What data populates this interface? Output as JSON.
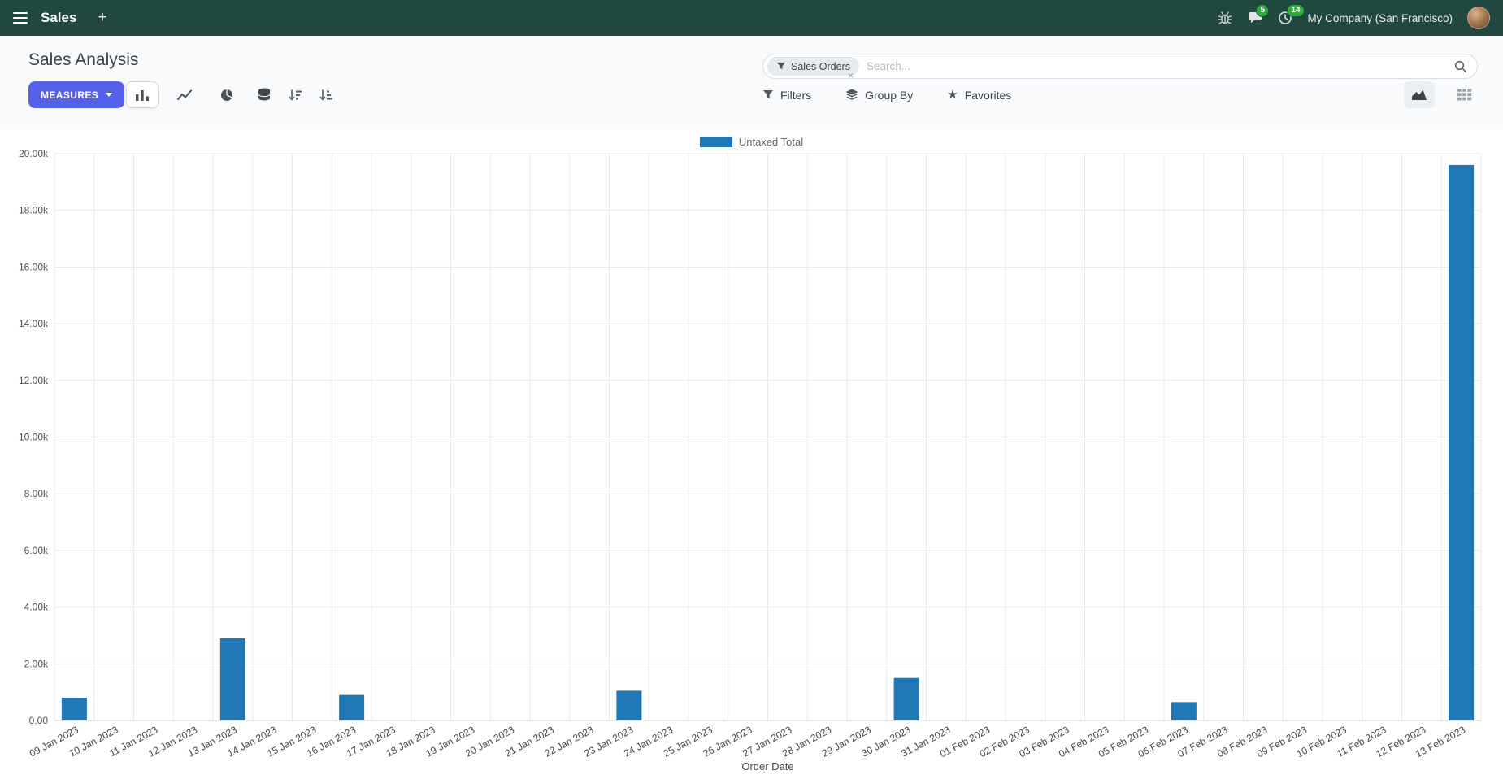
{
  "colors": {
    "navbar_bg": "#214840",
    "primary": "#5661ea",
    "badge_green": "#2ead3b"
  },
  "navbar": {
    "app_name": "Sales",
    "plus_label": "+",
    "messages_badge": "5",
    "activities_badge": "14",
    "company": "My Company (San Francisco)"
  },
  "control_panel": {
    "title": "Sales Analysis",
    "measures_label": "MEASURES",
    "filters_label": "Filters",
    "group_by_label": "Group By",
    "favorites_label": "Favorites",
    "search": {
      "facet_label": "Sales Orders",
      "facet_remove_label": "×",
      "placeholder": "Search..."
    }
  },
  "icons": {
    "favorites_star": "★"
  },
  "chart_data": {
    "type": "bar",
    "title": "",
    "legend_position": "top",
    "grid": true,
    "xlabel": "Order Date",
    "ylabel": "",
    "ylim": [
      0,
      20000
    ],
    "yticks": [
      "0.00",
      "2.00k",
      "4.00k",
      "6.00k",
      "8.00k",
      "10.00k",
      "12.00k",
      "14.00k",
      "16.00k",
      "18.00k",
      "20.00k"
    ],
    "categories": [
      "09 Jan 2023",
      "10 Jan 2023",
      "11 Jan 2023",
      "12 Jan 2023",
      "13 Jan 2023",
      "14 Jan 2023",
      "15 Jan 2023",
      "16 Jan 2023",
      "17 Jan 2023",
      "18 Jan 2023",
      "19 Jan 2023",
      "20 Jan 2023",
      "21 Jan 2023",
      "22 Jan 2023",
      "23 Jan 2023",
      "24 Jan 2023",
      "25 Jan 2023",
      "26 Jan 2023",
      "27 Jan 2023",
      "28 Jan 2023",
      "29 Jan 2023",
      "30 Jan 2023",
      "31 Jan 2023",
      "01 Feb 2023",
      "02 Feb 2023",
      "03 Feb 2023",
      "04 Feb 2023",
      "05 Feb 2023",
      "06 Feb 2023",
      "07 Feb 2023",
      "08 Feb 2023",
      "09 Feb 2023",
      "10 Feb 2023",
      "11 Feb 2023",
      "12 Feb 2023",
      "13 Feb 2023"
    ],
    "series": [
      {
        "name": "Untaxed Total",
        "color": "#1f77b4",
        "values": [
          800,
          0,
          0,
          0,
          2900,
          0,
          0,
          900,
          0,
          0,
          0,
          0,
          0,
          0,
          1050,
          0,
          0,
          0,
          0,
          0,
          0,
          1500,
          0,
          0,
          0,
          0,
          0,
          0,
          650,
          0,
          0,
          0,
          0,
          0,
          0,
          19600
        ]
      }
    ]
  }
}
